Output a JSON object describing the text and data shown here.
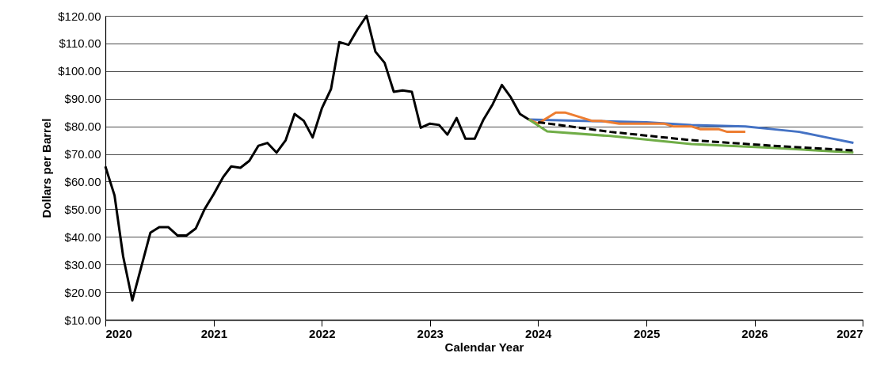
{
  "chart_data": {
    "type": "line",
    "xlabel": "Calendar Year",
    "ylabel": "Dollars per Barrel",
    "xlim": [
      "2020",
      "2027"
    ],
    "xticks": [
      "2020",
      "2021",
      "2022",
      "2023",
      "2024",
      "2025",
      "2026",
      "2027"
    ],
    "ylim": [
      10,
      120
    ],
    "yticks": [
      {
        "value": 10,
        "label": "$10.00"
      },
      {
        "value": 20,
        "label": "$20.00"
      },
      {
        "value": 30,
        "label": "$30.00"
      },
      {
        "value": 40,
        "label": "$40.00"
      },
      {
        "value": 50,
        "label": "$50.00"
      },
      {
        "value": 60,
        "label": "$60.00"
      },
      {
        "value": 70,
        "label": "$70.00"
      },
      {
        "value": 80,
        "label": "$80.00"
      },
      {
        "value": 90,
        "label": "$90.00"
      },
      {
        "value": 100,
        "label": "$100.00"
      },
      {
        "value": 110,
        "label": "$110.00"
      },
      {
        "value": 120,
        "label": "$120.00"
      }
    ],
    "grid": "y",
    "marker": "none",
    "line_style": "solid",
    "series": [
      {
        "color": "#000000",
        "x": [
          "2020-01",
          "2020-02",
          "2020-03",
          "2020-04",
          "2020-05",
          "2020-06",
          "2020-07",
          "2020-08",
          "2020-09",
          "2020-10",
          "2020-11",
          "2020-12",
          "2021-01",
          "2021-02",
          "2021-03",
          "2021-04",
          "2021-05",
          "2021-06",
          "2021-07",
          "2021-08",
          "2021-09",
          "2021-10",
          "2021-11",
          "2021-12",
          "2022-01",
          "2022-02",
          "2022-03",
          "2022-04",
          "2022-05",
          "2022-06",
          "2022-07",
          "2022-08",
          "2022-09",
          "2022-10",
          "2022-11",
          "2022-12",
          "2023-01",
          "2023-02",
          "2023-03",
          "2023-04",
          "2023-05",
          "2023-06",
          "2023-07",
          "2023-08",
          "2023-09",
          "2023-10",
          "2023-11",
          "2023-12"
        ],
        "values": [
          65.5,
          55,
          33,
          17,
          29,
          41.5,
          43.5,
          43.5,
          40.5,
          40.5,
          43,
          50,
          55.5,
          61.5,
          65.5,
          65,
          67.5,
          73,
          74,
          70.5,
          75,
          84.5,
          82,
          76,
          86.5,
          93.5,
          110.5,
          109.5,
          115,
          120,
          107,
          103,
          92.5,
          93,
          92.5,
          79.5,
          81,
          80.5,
          77,
          83,
          75.5,
          75.5,
          82.5,
          88,
          95,
          90.5,
          84.5,
          82.5
        ]
      },
      {
        "color": "#4472c4",
        "x": [
          "2023-12",
          "2024-06",
          "2025-01",
          "2025-06",
          "2025-12",
          "2026-03",
          "2026-06",
          "2026-09",
          "2026-12"
        ],
        "values": [
          82.5,
          82,
          81.5,
          80.5,
          80,
          79,
          78,
          76,
          74
        ]
      },
      {
        "color": "#ed7d31",
        "x": [
          "2023-12",
          "2024-01",
          "2024-03",
          "2024-04",
          "2024-07",
          "2024-08",
          "2024-10",
          "2025-03",
          "2025-04",
          "2025-06",
          "2025-07",
          "2025-09",
          "2025-10",
          "2025-12"
        ],
        "values": [
          82.5,
          81,
          85,
          85,
          82,
          82,
          81,
          81,
          80,
          80,
          79,
          79,
          78,
          78
        ]
      },
      {
        "color": "#70ad47",
        "x": [
          "2023-12",
          "2024-02",
          "2024-09",
          "2025-06",
          "2026-03",
          "2026-12"
        ],
        "values": [
          82.5,
          78.2,
          76.5,
          73.6,
          72.2,
          70.5
        ]
      },
      {
        "color": "#000000",
        "line_style": "dashed",
        "x": [
          "2024-01",
          "2024-09",
          "2025-06",
          "2026-03",
          "2026-12"
        ],
        "values": [
          81.5,
          78,
          75,
          73,
          71.3
        ]
      }
    ]
  }
}
